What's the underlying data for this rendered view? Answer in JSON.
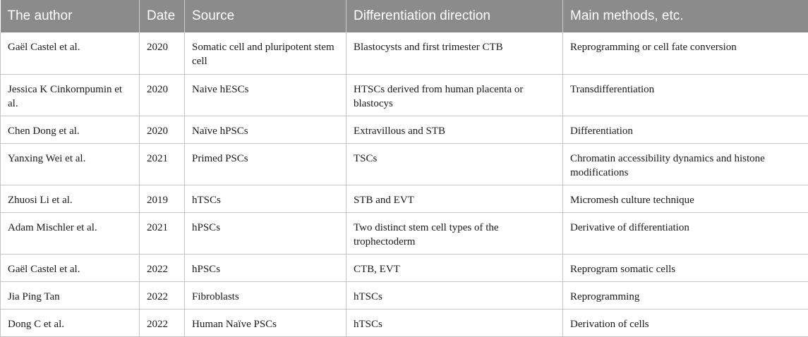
{
  "table": {
    "headers": [
      "The author",
      "Date",
      "Source",
      "Differentiation direction",
      "Main methods, etc."
    ],
    "rows": [
      {
        "author": "Gaël Castel et al.",
        "date": "2020",
        "source": "Somatic cell and pluripotent stem cell",
        "direction": "Blastocysts and first trimester CTB",
        "methods": "Reprogramming or cell fate conversion"
      },
      {
        "author": "Jessica K Cinkornpumin et al.",
        "date": "2020",
        "source": "Naive hESCs",
        "direction": "HTSCs derived from human placenta or blastocys",
        "methods": "Transdifferentiation"
      },
      {
        "author": "Chen Dong et al.",
        "date": "2020",
        "source": "Naïve hPSCs",
        "direction": "Extravillous and STB",
        "methods": "Differentiation"
      },
      {
        "author": "Yanxing Wei et al.",
        "date": "2021",
        "source": "Primed PSCs",
        "direction": "TSCs",
        "methods": "Chromatin accessibility dynamics and histone modifications"
      },
      {
        "author": "Zhuosi Li et al.",
        "date": "2019",
        "source": "hTSCs",
        "direction": "STB and EVT",
        "methods": "Micromesh culture technique"
      },
      {
        "author": "Adam Mischler et al.",
        "date": "2021",
        "source": "hPSCs",
        "direction": "Two distinct stem cell types of the trophectoderm",
        "methods": "Derivative of differentiation"
      },
      {
        "author": "Gaël Castel et al.",
        "date": "2022",
        "source": "hPSCs",
        "direction": "CTB, EVT",
        "methods": "Reprogram somatic cells"
      },
      {
        "author": "Jia Ping Tan",
        "date": "2022",
        "source": "Fibroblasts",
        "direction": "hTSCs",
        "methods": "Reprogramming"
      },
      {
        "author": "Dong C et al.",
        "date": "2022",
        "source": "Human Naïve PSCs",
        "direction": "hTSCs",
        "methods": "Derivation of cells"
      }
    ]
  }
}
